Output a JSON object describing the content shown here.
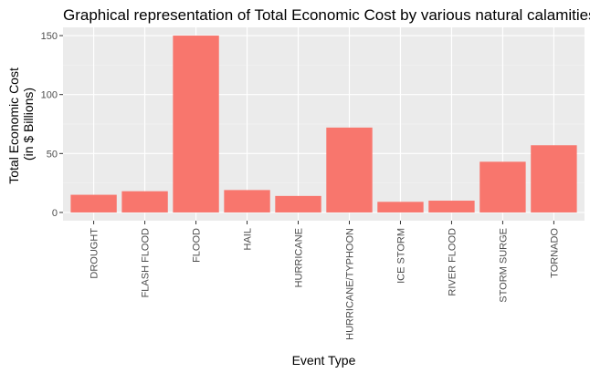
{
  "chart_data": {
    "type": "bar",
    "title": "Graphical representation of Total Economic Cost by various natural calamities",
    "xlabel": "Event Type",
    "ylabel_lines": [
      "Total Economic Cost",
      "(in $ Billions)"
    ],
    "categories": [
      "DROUGHT",
      "FLASH FLOOD",
      "FLOOD",
      "HAIL",
      "HURRICANE",
      "HURRICANE/TYPHOON",
      "ICE STORM",
      "RIVER FLOOD",
      "STORM SURGE",
      "TORNADO"
    ],
    "values": [
      15,
      18,
      150,
      19,
      14,
      72,
      9,
      10,
      43,
      57
    ],
    "ylim": [
      -7,
      157
    ],
    "yticks": [
      0,
      50,
      100,
      150
    ],
    "grid": true,
    "colors": {
      "bar": "#F8766D",
      "panel": "#EBEBEB",
      "grid_major": "#FFFFFF",
      "grid_minor": "#F5F5F5",
      "tick_text": "#4D4D4D"
    }
  }
}
